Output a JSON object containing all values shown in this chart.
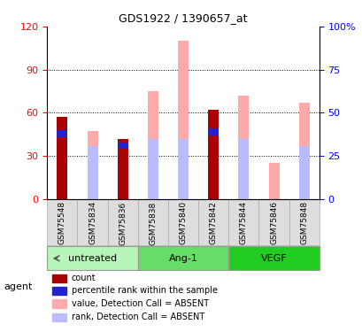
{
  "title": "GDS1922 / 1390657_at",
  "samples": [
    "GSM75548",
    "GSM75834",
    "GSM75836",
    "GSM75838",
    "GSM75840",
    "GSM75842",
    "GSM75844",
    "GSM75846",
    "GSM75848"
  ],
  "groups": [
    {
      "name": "untreated",
      "indices": [
        0,
        1,
        2
      ]
    },
    {
      "name": "Ang-1",
      "indices": [
        3,
        4,
        5
      ]
    },
    {
      "name": "VEGF",
      "indices": [
        6,
        7,
        8
      ]
    }
  ],
  "group_colors": [
    "#b8f5b8",
    "#66dd66",
    "#22cc22"
  ],
  "count_values": [
    57,
    0,
    42,
    0,
    0,
    62,
    0,
    0,
    0
  ],
  "rank_values": [
    43,
    0,
    35,
    0,
    0,
    44,
    0,
    0,
    0
  ],
  "blue_small": [
    5,
    0,
    4,
    0,
    0,
    5,
    0,
    0,
    0
  ],
  "pink_abs": [
    0,
    47,
    0,
    75,
    110,
    0,
    72,
    25,
    67
  ],
  "lavender_abs": [
    0,
    37,
    37,
    42,
    42,
    0,
    42,
    0,
    37
  ],
  "ylim_left": [
    0,
    120
  ],
  "ylim_right": [
    0,
    100
  ],
  "yticks_left": [
    0,
    30,
    60,
    90,
    120
  ],
  "yticks_right": [
    0,
    25,
    50,
    75,
    100
  ],
  "color_count": "#aa0000",
  "color_blue": "#2222cc",
  "color_pink": "#ffaaaa",
  "color_lavender": "#bbbbff",
  "legend_items": [
    {
      "color": "#aa0000",
      "label": "count"
    },
    {
      "color": "#2222cc",
      "label": "percentile rank within the sample"
    },
    {
      "color": "#ffaaaa",
      "label": "value, Detection Call = ABSENT"
    },
    {
      "color": "#bbbbff",
      "label": "rank, Detection Call = ABSENT"
    }
  ]
}
